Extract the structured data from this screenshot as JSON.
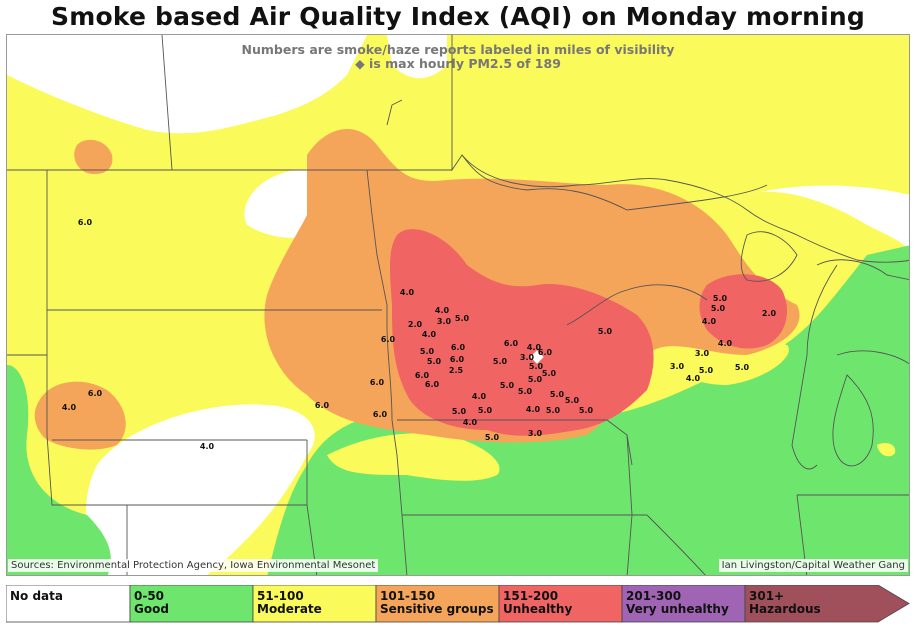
{
  "title": "Smoke based Air Quality Index (AQI) on Monday morning",
  "subtitle_line1": "Numbers are smoke/haze reports labeled in miles of visibility",
  "subtitle_line2": "◆ is max hourly PM2.5 of 189",
  "sources": "Sources: Environmental Protection Agency, Iowa Environmental Mesonet",
  "credit": "Ian Livingston/Capital Weather Gang",
  "colors": {
    "no_data": "#ffffff",
    "good": "#6ee66e",
    "moderate": "#fafa5a",
    "sensitive": "#f5a55a",
    "unhealthy": "#f06464",
    "very_unhealthy": "#a064b4",
    "hazardous": "#a0505a"
  },
  "legend": [
    {
      "range": "No data",
      "label": ""
    },
    {
      "range": "0-50",
      "label": "Good"
    },
    {
      "range": "51-100",
      "label": "Moderate"
    },
    {
      "range": "101-150",
      "label": "Sensitive groups"
    },
    {
      "range": "151-200",
      "label": "Unhealthy"
    },
    {
      "range": "201-300",
      "label": "Very unhealthy"
    },
    {
      "range": "301+",
      "label": "Hazardous"
    }
  ],
  "visibility_reports": [
    "6.0",
    "6.0",
    "4.0",
    "4.0",
    "4.0",
    "4.0",
    "3.0",
    "5.0",
    "2.0",
    "4.0",
    "6.0",
    "5.0",
    "5.0",
    "6.0",
    "6.0",
    "2.5",
    "6.0",
    "6.0",
    "5.0",
    "3.0",
    "4.0",
    "6.0",
    "6.0",
    "5.0",
    "5.0",
    "5.0",
    "5.0",
    "5.0",
    "5.0",
    "4.0",
    "5.0",
    "5.0",
    "5.0",
    "5.0",
    "4.0",
    "5.0",
    "6.0",
    "6.0",
    "5.0",
    "3.0",
    "4.0",
    "5.0",
    "6.0",
    "5.0",
    "5.0",
    "4.0",
    "2.0",
    "4.0",
    "3.0",
    "3.0",
    "4.0",
    "5.0",
    "5.0"
  ]
}
